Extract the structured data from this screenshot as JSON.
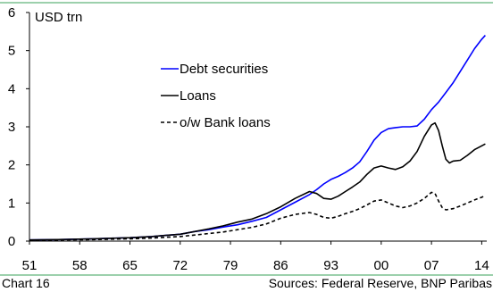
{
  "chart_data": {
    "type": "line",
    "ylabel": "USD trn",
    "ylim": [
      0,
      6
    ],
    "xlim": [
      1951,
      2014.7
    ],
    "yticks": [
      "0",
      "1",
      "2",
      "3",
      "4",
      "5",
      "6"
    ],
    "xticks": [
      "51",
      "58",
      "65",
      "72",
      "79",
      "86",
      "93",
      "00",
      "07",
      "14"
    ],
    "grid": false,
    "legend_position": "upper-left",
    "series": [
      {
        "name": "Debt securities",
        "color": "#0000ff",
        "style": "solid",
        "points": [
          [
            1951,
            0.03
          ],
          [
            1955,
            0.04
          ],
          [
            1960,
            0.06
          ],
          [
            1965,
            0.09
          ],
          [
            1968,
            0.12
          ],
          [
            1970,
            0.15
          ],
          [
            1972,
            0.18
          ],
          [
            1974,
            0.25
          ],
          [
            1976,
            0.3
          ],
          [
            1978,
            0.37
          ],
          [
            1979,
            0.4
          ],
          [
            1980,
            0.43
          ],
          [
            1982,
            0.52
          ],
          [
            1984,
            0.62
          ],
          [
            1986,
            0.82
          ],
          [
            1988,
            1.02
          ],
          [
            1990,
            1.22
          ],
          [
            1991,
            1.35
          ],
          [
            1992,
            1.5
          ],
          [
            1993,
            1.62
          ],
          [
            1994,
            1.7
          ],
          [
            1995,
            1.8
          ],
          [
            1996,
            1.92
          ],
          [
            1997,
            2.08
          ],
          [
            1998,
            2.35
          ],
          [
            1999,
            2.65
          ],
          [
            2000,
            2.85
          ],
          [
            2001,
            2.95
          ],
          [
            2002,
            2.98
          ],
          [
            2003,
            3.0
          ],
          [
            2004,
            3.0
          ],
          [
            2005,
            3.02
          ],
          [
            2006,
            3.2
          ],
          [
            2007,
            3.45
          ],
          [
            2008,
            3.65
          ],
          [
            2009,
            3.9
          ],
          [
            2010,
            4.15
          ],
          [
            2011,
            4.45
          ],
          [
            2012,
            4.75
          ],
          [
            2013,
            5.05
          ],
          [
            2014,
            5.3
          ],
          [
            2014.5,
            5.4
          ]
        ]
      },
      {
        "name": "Loans",
        "color": "#000000",
        "style": "solid",
        "points": [
          [
            1951,
            0.03
          ],
          [
            1955,
            0.04
          ],
          [
            1960,
            0.06
          ],
          [
            1965,
            0.09
          ],
          [
            1968,
            0.12
          ],
          [
            1970,
            0.15
          ],
          [
            1972,
            0.18
          ],
          [
            1974,
            0.25
          ],
          [
            1976,
            0.32
          ],
          [
            1978,
            0.4
          ],
          [
            1979,
            0.45
          ],
          [
            1980,
            0.5
          ],
          [
            1982,
            0.58
          ],
          [
            1984,
            0.72
          ],
          [
            1986,
            0.9
          ],
          [
            1988,
            1.12
          ],
          [
            1990,
            1.3
          ],
          [
            1991,
            1.25
          ],
          [
            1992,
            1.12
          ],
          [
            1993,
            1.1
          ],
          [
            1994,
            1.18
          ],
          [
            1995,
            1.3
          ],
          [
            1996,
            1.42
          ],
          [
            1997,
            1.55
          ],
          [
            1998,
            1.75
          ],
          [
            1999,
            1.92
          ],
          [
            2000,
            1.97
          ],
          [
            2001,
            1.92
          ],
          [
            2002,
            1.88
          ],
          [
            2003,
            1.95
          ],
          [
            2004,
            2.1
          ],
          [
            2005,
            2.35
          ],
          [
            2006,
            2.75
          ],
          [
            2007,
            3.05
          ],
          [
            2007.5,
            3.1
          ],
          [
            2008,
            2.9
          ],
          [
            2008.5,
            2.5
          ],
          [
            2009,
            2.15
          ],
          [
            2009.5,
            2.05
          ],
          [
            2010,
            2.1
          ],
          [
            2011,
            2.12
          ],
          [
            2012,
            2.25
          ],
          [
            2013,
            2.4
          ],
          [
            2014,
            2.5
          ],
          [
            2014.5,
            2.55
          ]
        ]
      },
      {
        "name": "o/w Bank loans",
        "color": "#000000",
        "style": "dashed",
        "points": [
          [
            1951,
            0.02
          ],
          [
            1955,
            0.03
          ],
          [
            1960,
            0.04
          ],
          [
            1965,
            0.06
          ],
          [
            1968,
            0.08
          ],
          [
            1970,
            0.1
          ],
          [
            1972,
            0.12
          ],
          [
            1974,
            0.16
          ],
          [
            1976,
            0.2
          ],
          [
            1978,
            0.24
          ],
          [
            1979,
            0.27
          ],
          [
            1980,
            0.3
          ],
          [
            1982,
            0.36
          ],
          [
            1984,
            0.45
          ],
          [
            1986,
            0.6
          ],
          [
            1988,
            0.7
          ],
          [
            1990,
            0.75
          ],
          [
            1991,
            0.7
          ],
          [
            1992,
            0.62
          ],
          [
            1993,
            0.6
          ],
          [
            1994,
            0.65
          ],
          [
            1995,
            0.72
          ],
          [
            1996,
            0.78
          ],
          [
            1997,
            0.85
          ],
          [
            1998,
            0.95
          ],
          [
            1999,
            1.05
          ],
          [
            2000,
            1.08
          ],
          [
            2001,
            1.0
          ],
          [
            2002,
            0.92
          ],
          [
            2003,
            0.88
          ],
          [
            2004,
            0.92
          ],
          [
            2005,
            1.0
          ],
          [
            2006,
            1.12
          ],
          [
            2007,
            1.28
          ],
          [
            2007.5,
            1.25
          ],
          [
            2008,
            1.05
          ],
          [
            2008.5,
            0.88
          ],
          [
            2009,
            0.82
          ],
          [
            2010,
            0.85
          ],
          [
            2011,
            0.92
          ],
          [
            2012,
            1.0
          ],
          [
            2013,
            1.08
          ],
          [
            2014,
            1.15
          ],
          [
            2014.5,
            1.2
          ]
        ]
      }
    ]
  },
  "footer": {
    "chart_number": "Chart 16",
    "sources": "Sources: Federal Reserve, BNP Paribas"
  }
}
